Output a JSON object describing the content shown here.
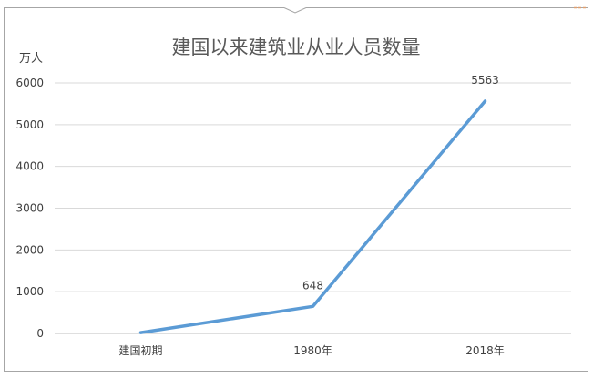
{
  "chart_data": {
    "type": "line",
    "title": "建国以来建筑业从业人员数量",
    "ylabel": "万人",
    "xlabel": "",
    "categories": [
      "建国初期",
      "1980年",
      "2018年"
    ],
    "series": [
      {
        "values": [
          20,
          648,
          5563
        ],
        "labels": [
          "",
          "648",
          "5563"
        ],
        "color": "#5b9bd5"
      }
    ],
    "ylim": [
      0,
      6000
    ],
    "yticks": [
      "0",
      "1000",
      "2000",
      "3000",
      "4000",
      "5000",
      "6000"
    ],
    "grid": true,
    "legend": "none"
  }
}
